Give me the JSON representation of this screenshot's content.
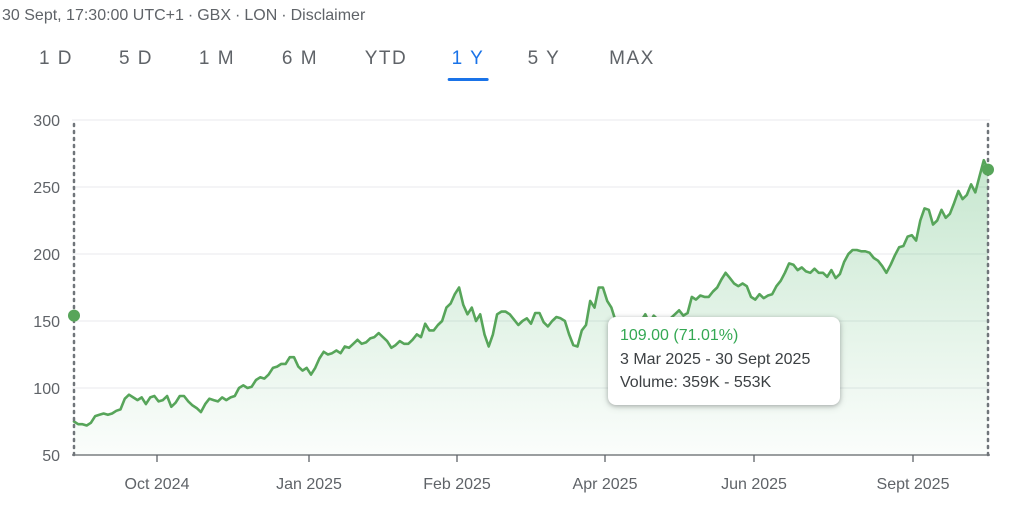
{
  "header": {
    "timestamp": "30 Sept, 17:30:00 UTC+1",
    "currency": "GBX",
    "exchange": "LON",
    "disclaimer": "Disclaimer"
  },
  "range_tabs": [
    {
      "label": "1 D",
      "active": false
    },
    {
      "label": "5 D",
      "active": false
    },
    {
      "label": "1 M",
      "active": false
    },
    {
      "label": "6 M",
      "active": false
    },
    {
      "label": "YTD",
      "active": false
    },
    {
      "label": "1 Y",
      "active": true
    },
    {
      "label": "5 Y",
      "active": false
    },
    {
      "label": "MAX",
      "active": false
    }
  ],
  "tooltip": {
    "change": "109.00 (71.01%)",
    "date_range": "3 Mar 2025 - 30 Sept 2025",
    "volume": "Volume: 359K - 553K"
  },
  "colors": {
    "line": "#57a55a",
    "fill": "#34a853",
    "active_tab": "#1a73e8",
    "positive": "#34a853"
  },
  "chart_data": {
    "type": "line",
    "x_tick_labels": [
      "Oct 2024",
      "Jan 2025",
      "Feb 2025",
      "Apr 2025",
      "Jun 2025",
      "Sept 2025"
    ],
    "y_ticks": [
      50,
      100,
      150,
      200,
      250,
      300
    ],
    "ylim": [
      50,
      300
    ],
    "grid": true,
    "selection": {
      "start_value": 154,
      "end_value": 263
    },
    "series": [
      {
        "values": [
          75,
          73,
          73,
          72,
          74,
          79,
          80,
          81,
          80,
          81,
          83,
          84,
          92,
          95,
          93,
          91,
          93,
          88,
          93,
          94,
          90,
          91,
          94,
          86,
          89,
          94,
          94,
          90,
          87,
          85,
          82,
          88,
          92,
          91,
          90,
          93,
          91,
          93,
          94,
          100,
          102,
          100,
          101,
          106,
          108,
          107,
          110,
          115,
          116,
          118,
          118,
          123,
          123,
          116,
          113,
          115,
          110,
          115,
          122,
          127,
          125,
          126,
          128,
          126,
          131,
          130,
          133,
          136,
          133,
          134,
          137,
          138,
          141,
          138,
          135,
          130,
          132,
          135,
          133,
          133,
          136,
          140,
          138,
          148,
          143,
          143,
          147,
          150,
          160,
          163,
          170,
          175,
          162,
          155,
          160,
          150,
          155,
          140,
          131,
          140,
          155,
          157,
          157,
          155,
          151,
          147,
          150,
          152,
          148,
          156,
          156,
          149,
          146,
          150,
          153,
          152,
          150,
          140,
          132,
          131,
          143,
          147,
          165,
          160,
          175,
          175,
          165,
          160,
          150,
          150,
          144,
          150,
          145,
          148,
          150,
          155,
          148,
          154,
          151,
          152,
          148,
          152,
          155,
          158,
          154,
          156,
          168,
          166,
          169,
          168,
          168,
          172,
          175,
          181,
          186,
          182,
          178,
          176,
          178,
          176,
          168,
          166,
          170,
          167,
          169,
          170,
          176,
          180,
          186,
          193,
          192,
          188,
          190,
          187,
          186,
          189,
          186,
          186,
          183,
          188,
          182,
          185,
          194,
          200,
          203,
          203,
          202,
          202,
          201,
          197,
          195,
          191,
          186,
          192,
          199,
          205,
          206,
          213,
          214,
          210,
          225,
          234,
          233,
          222,
          225,
          233,
          227,
          230,
          238,
          247,
          241,
          244,
          252,
          246,
          258,
          270,
          263
        ]
      }
    ]
  }
}
